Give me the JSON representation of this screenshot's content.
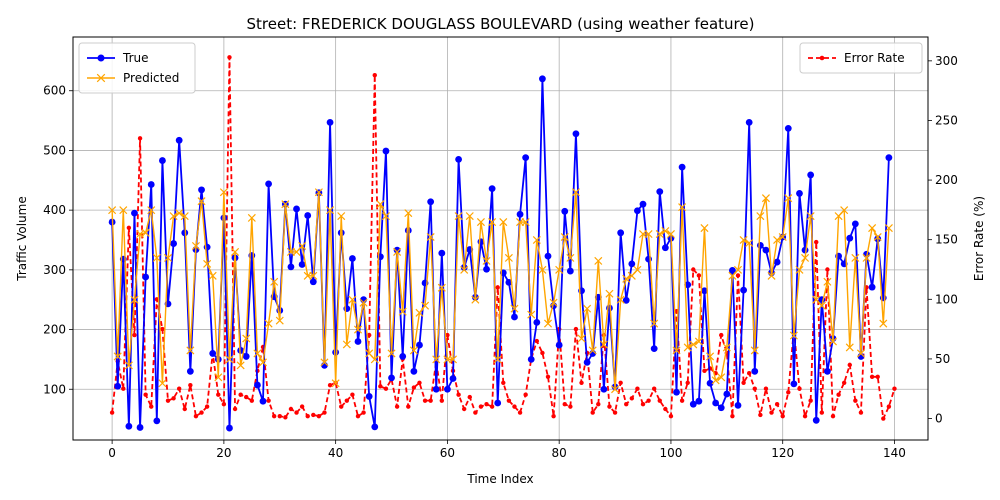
{
  "chart_data": {
    "type": "line",
    "title": "Street: FREDERICK DOUGLASS BOULEVARD (using weather feature)",
    "xlabel": "Time Index",
    "ylabel": "Traffic Volume",
    "y2label": "Error Rate (%)",
    "xlim": [
      -7,
      146
    ],
    "ylim": [
      15,
      690
    ],
    "y2lim": [
      -18,
      320
    ],
    "xticks": [
      0,
      20,
      40,
      60,
      80,
      100,
      120,
      140
    ],
    "yticks": [
      100,
      200,
      300,
      400,
      500,
      600
    ],
    "y2ticks": [
      0,
      50,
      100,
      150,
      200,
      250,
      300
    ],
    "grid": true,
    "legend_left": [
      "True",
      "Predicted"
    ],
    "legend_right": [
      "Error Rate"
    ],
    "colors": {
      "true": "#0000ff",
      "predicted": "#ffa500",
      "error": "#ff0000"
    },
    "series": [
      {
        "name": "True",
        "axis": "left",
        "values": [
          380,
          105,
          318,
          38,
          395,
          36,
          288,
          443,
          47,
          483,
          243,
          344,
          517,
          362,
          130,
          334,
          434,
          338,
          160,
          150,
          387,
          35,
          320,
          165,
          155,
          324,
          107,
          80,
          444,
          255,
          232,
          410,
          305,
          402,
          309,
          391,
          280,
          429,
          140,
          547,
          162,
          362,
          235,
          319,
          180,
          250,
          88,
          37,
          322,
          499,
          119,
          333,
          155,
          366,
          130,
          174,
          278,
          414,
          100,
          328,
          100,
          118,
          485,
          304,
          334,
          254,
          347,
          301,
          436,
          77,
          295,
          279,
          221,
          393,
          488,
          150,
          212,
          620,
          323,
          240,
          174,
          398,
          298,
          528,
          265,
          145,
          160,
          254,
          100,
          236,
          104,
          362,
          249,
          310,
          399,
          410,
          318,
          168,
          431,
          337,
          353,
          95,
          472,
          275,
          75,
          80,
          265,
          110,
          77,
          69,
          92,
          299,
          73,
          266,
          547,
          130,
          341,
          333,
          295,
          313,
          355,
          537,
          109,
          428,
          333,
          459,
          48,
          250,
          130,
          185,
          323,
          310,
          353,
          377,
          155,
          326,
          271,
          352,
          253,
          488
        ]
      },
      {
        "name": "Predicted",
        "axis": "left",
        "values": [
          400,
          155,
          400,
          140,
          250,
          360,
          362,
          400,
          320,
          110,
          320,
          390,
          395,
          390,
          165,
          340,
          415,
          310,
          290,
          120,
          430,
          150,
          330,
          140,
          185,
          387,
          160,
          145,
          210,
          280,
          215,
          410,
          330,
          330,
          340,
          290,
          290,
          430,
          145,
          400,
          110,
          390,
          175,
          250,
          200,
          245,
          160,
          150,
          410,
          390,
          160,
          330,
          230,
          395,
          165,
          228,
          240,
          355,
          150,
          270,
          150,
          150,
          390,
          300,
          390,
          250,
          380,
          315,
          380,
          150,
          380,
          320,
          235,
          380,
          380,
          225,
          350,
          300,
          210,
          245,
          300,
          355,
          320,
          430,
          185,
          235,
          165,
          315,
          175,
          260,
          100,
          250,
          285,
          290,
          300,
          360,
          360,
          210,
          360,
          365,
          360,
          165,
          405,
          170,
          175,
          180,
          370,
          155,
          115,
          120,
          170,
          290,
          300,
          350,
          345,
          165,
          390,
          420,
          290,
          350,
          355,
          420,
          190,
          300,
          320,
          390,
          250,
          240,
          280,
          180,
          390,
          400,
          170,
          320,
          160,
          320,
          370,
          355,
          210,
          370
        ]
      },
      {
        "name": "Error Rate",
        "axis": "right",
        "values": [
          5,
          48,
          25,
          160,
          70,
          235,
          20,
          10,
          100,
          75,
          15,
          17,
          25,
          8,
          28,
          2,
          5,
          10,
          55,
          20,
          12,
          303,
          8,
          20,
          18,
          15,
          40,
          60,
          15,
          2,
          2,
          1,
          8,
          5,
          10,
          2,
          3,
          2,
          5,
          28,
          30,
          10,
          15,
          20,
          2,
          5,
          70,
          288,
          27,
          25,
          33,
          10,
          50,
          10,
          26,
          30,
          15,
          15,
          48,
          15,
          70,
          40,
          20,
          8,
          18,
          5,
          10,
          12,
          10,
          110,
          30,
          15,
          10,
          5,
          20,
          50,
          65,
          55,
          35,
          2,
          75,
          12,
          10,
          75,
          30,
          55,
          5,
          12,
          70,
          10,
          5,
          30,
          12,
          17,
          25,
          12,
          15,
          25,
          15,
          8,
          2,
          90,
          15,
          30,
          125,
          120,
          40,
          42,
          38,
          70,
          55,
          2,
          120,
          30,
          38,
          25,
          3,
          25,
          5,
          12,
          2,
          22,
          75,
          25,
          2,
          15,
          148,
          5,
          125,
          2,
          20,
          30,
          45,
          15,
          5,
          110,
          35,
          35,
          0,
          10,
          25
        ]
      }
    ]
  }
}
